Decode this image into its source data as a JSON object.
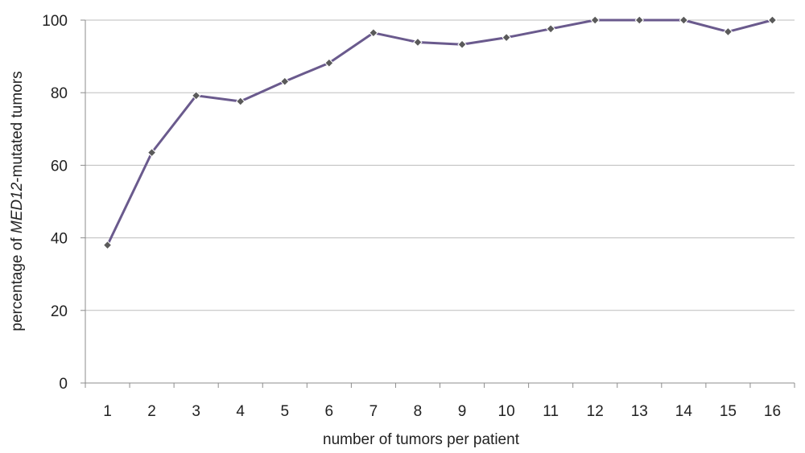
{
  "chart_data": {
    "type": "line",
    "x": [
      1,
      2,
      3,
      4,
      5,
      6,
      7,
      8,
      9,
      10,
      11,
      12,
      13,
      14,
      15,
      16
    ],
    "series": [
      {
        "values": [
          38,
          63.5,
          79.2,
          77.6,
          83.1,
          88.2,
          96.5,
          93.9,
          93.3,
          95.2,
          97.6,
          100,
          100,
          100,
          96.8,
          100
        ],
        "color": "#6a5a8d",
        "marker": "diamond",
        "marker_color": "#5a5a5a"
      }
    ],
    "ylim": [
      0,
      100
    ],
    "yticks": [
      0,
      20,
      40,
      60,
      80,
      100
    ],
    "xlabel": "number of tumors per patient",
    "ylabel": {
      "prefix": "percentage of ",
      "italic": "MED12",
      "suffix": "-mutated tumors"
    },
    "grid": "horizontal"
  }
}
